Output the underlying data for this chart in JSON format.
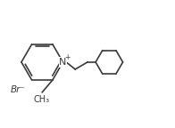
{
  "bg_color": "#ffffff",
  "line_color": "#3a3a3a",
  "line_width": 1.2,
  "text_color": "#3a3a3a",
  "font_size": 7.0,
  "figsize": [
    1.96,
    1.44
  ],
  "dpi": 100,
  "br_text": "Br⁻",
  "n_text": "N",
  "plus_text": "+",
  "ch3_text": "CH₃"
}
